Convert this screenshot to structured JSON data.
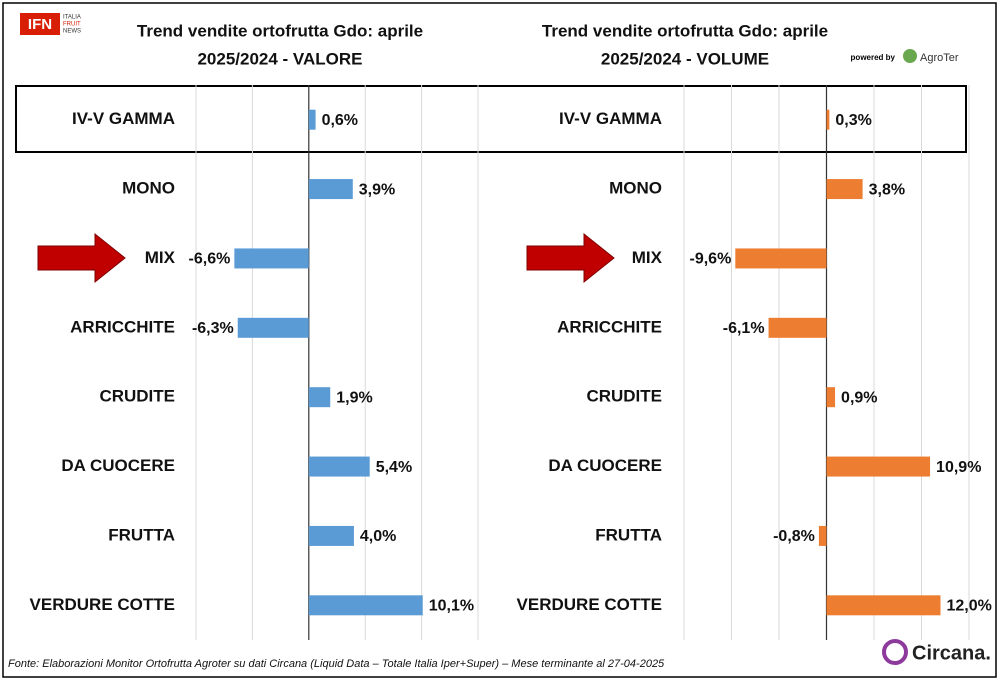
{
  "header": {
    "logo": "IFN",
    "logo_sub": [
      "ITALIA",
      "FRUIT",
      "NEWS"
    ],
    "powered_by": "powered by",
    "partner": "AgroTer"
  },
  "chart_data": [
    {
      "type": "bar",
      "orientation": "horizontal",
      "title": "Trend vendite ortofrutta Gdo: aprile",
      "subtitle": "2025/2024 - VALORE",
      "categories": [
        "IV-V GAMMA",
        "MONO",
        "MIX",
        "ARRICCHITE",
        "CRUDITE",
        "DA CUOCERE",
        "FRUTTA",
        "VERDURE COTTE"
      ],
      "values": [
        0.6,
        3.9,
        -6.6,
        -6.3,
        1.9,
        5.4,
        4.0,
        10.1
      ],
      "value_labels": [
        "0,6%",
        "3,9%",
        "-6,6%",
        "-6,3%",
        "1,9%",
        "5,4%",
        "4,0%",
        "10,1%"
      ],
      "color": "#5b9bd5",
      "xlim": [
        -10,
        15
      ],
      "xticks": [
        -10,
        -5,
        0,
        5,
        10,
        15
      ],
      "grid": true
    },
    {
      "type": "bar",
      "orientation": "horizontal",
      "title": "Trend vendite ortofrutta Gdo: aprile",
      "subtitle": "2025/2024 - VOLUME",
      "categories": [
        "IV-V GAMMA",
        "MONO",
        "MIX",
        "ARRICCHITE",
        "CRUDITE",
        "DA CUOCERE",
        "FRUTTA",
        "VERDURE COTTE"
      ],
      "values": [
        0.3,
        3.8,
        -9.6,
        -6.1,
        0.9,
        10.9,
        -0.8,
        12.0
      ],
      "value_labels": [
        "0,3%",
        "3,8%",
        "-9,6%",
        "-6,1%",
        "0,9%",
        "10,9%",
        "-0,8%",
        "12,0%"
      ],
      "color": "#ed7d31",
      "xlim": [
        -15,
        15
      ],
      "xticks": [
        -15,
        -10,
        -5,
        0,
        5,
        10,
        15
      ],
      "grid": true
    }
  ],
  "footer": {
    "source": "Fonte: Elaborazioni Monitor Ortofrutta Agroter su dati Circana (Liquid Data – Totale Italia Iper+Super) – Mese terminante al 27-04-2025",
    "brand": "Circana."
  }
}
